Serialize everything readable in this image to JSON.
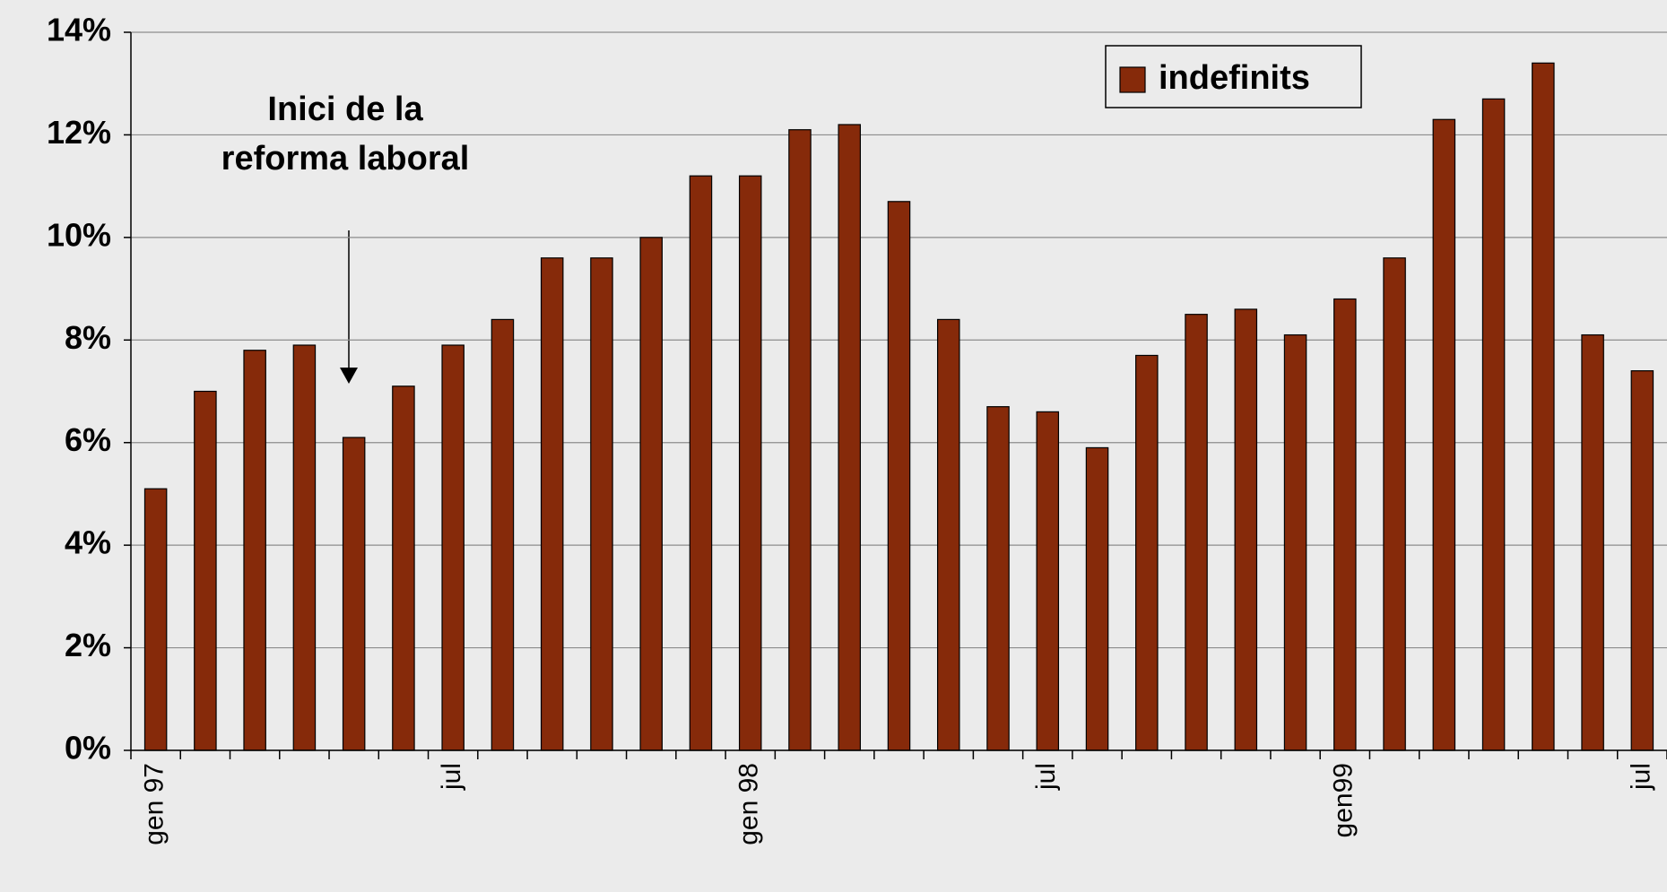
{
  "chart_data": {
    "type": "bar",
    "annotation": [
      "Inici de la",
      "reforma laboral"
    ],
    "categories": [
      "gen 97",
      null,
      null,
      null,
      null,
      null,
      "jul",
      null,
      null,
      null,
      null,
      null,
      "gen 98",
      null,
      null,
      null,
      null,
      null,
      "jul",
      null,
      null,
      null,
      null,
      null,
      "gen99",
      null,
      null,
      null,
      null,
      null,
      "jul"
    ],
    "series": [
      {
        "name": "indefinits",
        "color": "#862a0a",
        "values": [
          5.1,
          7.0,
          7.8,
          7.9,
          6.1,
          7.1,
          7.9,
          8.4,
          9.6,
          9.6,
          10.0,
          11.2,
          11.2,
          12.1,
          12.2,
          10.7,
          8.4,
          6.7,
          6.6,
          5.9,
          7.7,
          8.5,
          8.6,
          8.1,
          8.8,
          9.6,
          12.3,
          12.7,
          13.4,
          8.1,
          7.4
        ]
      }
    ],
    "ylim": [
      0,
      14
    ],
    "yticks": [
      {
        "value": 0,
        "label": "0%"
      },
      {
        "value": 2,
        "label": "2%"
      },
      {
        "value": 4,
        "label": "4%"
      },
      {
        "value": 6,
        "label": "6%"
      },
      {
        "value": 8,
        "label": "8%"
      },
      {
        "value": 10,
        "label": "10%"
      },
      {
        "value": 12,
        "label": "12%"
      },
      {
        "value": 14,
        "label": "14%"
      }
    ],
    "grid": true,
    "legend": "top-right"
  }
}
